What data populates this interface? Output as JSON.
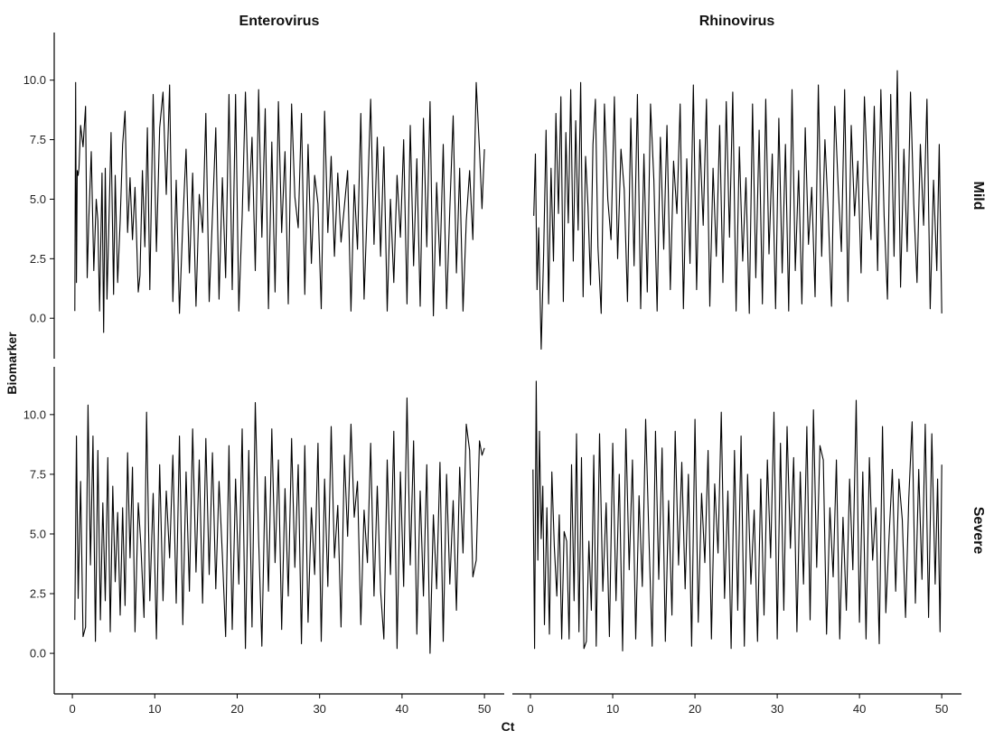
{
  "chart_data": {
    "type": "line",
    "facet_columns": [
      "Enterovirus",
      "Rhinovirus"
    ],
    "facet_rows": [
      "Mild",
      "Severe"
    ],
    "xlabel": "Ct",
    "ylabel": "Biomarker",
    "xlim": [
      -2.2,
      52.4
    ],
    "xticks": [
      0,
      10,
      20,
      30,
      40,
      50
    ],
    "ylim": [
      -1.7,
      12.0
    ],
    "yticks": [
      0.0,
      2.5,
      5.0,
      7.5,
      10.0
    ],
    "ytick_labels": [
      "0.0",
      "2.5",
      "5.0",
      "7.5",
      "10.0"
    ],
    "grid": false,
    "legend": "none",
    "panels": [
      {
        "column": "Enterovirus",
        "row": "Mild",
        "x": [
          0.3,
          0.4,
          0.5,
          0.6,
          0.7,
          0.8,
          1.0,
          1.3,
          1.6,
          1.8,
          2.0,
          2.3,
          2.6,
          2.9,
          3.1,
          3.3,
          3.6,
          3.8,
          4.0,
          4.2,
          4.4,
          4.7,
          5.0,
          5.2,
          5.5,
          5.8,
          6.1,
          6.4,
          6.7,
          7.0,
          7.3,
          7.6,
          8.0,
          8.2,
          8.5,
          8.8,
          9.1,
          9.4,
          9.8,
          10.2,
          10.6,
          11.0,
          11.4,
          11.8,
          12.2,
          12.6,
          13.0,
          13.4,
          13.8,
          14.2,
          14.6,
          15.0,
          15.4,
          15.8,
          16.2,
          16.6,
          17.0,
          17.4,
          17.8,
          18.2,
          18.6,
          19.0,
          19.4,
          19.8,
          20.2,
          20.6,
          21.0,
          21.4,
          21.8,
          22.2,
          22.6,
          23.0,
          23.4,
          23.8,
          24.2,
          24.6,
          25.0,
          25.4,
          25.8,
          26.2,
          26.6,
          27.0,
          27.4,
          27.8,
          28.2,
          28.6,
          29.0,
          29.4,
          29.8,
          30.2,
          30.6,
          31.0,
          31.4,
          31.8,
          32.2,
          32.6,
          33.0,
          33.4,
          33.8,
          34.2,
          34.6,
          35.0,
          35.4,
          35.8,
          36.2,
          36.6,
          37.0,
          37.4,
          37.8,
          38.2,
          38.6,
          39.0,
          39.4,
          39.8,
          40.2,
          40.6,
          41.0,
          41.4,
          41.8,
          42.2,
          42.6,
          43.0,
          43.4,
          43.8,
          44.2,
          44.6,
          45.0,
          45.4,
          45.8,
          46.2,
          46.6,
          47.0,
          47.4,
          47.8,
          48.2,
          48.6,
          49.0,
          49.4,
          49.7,
          50.0
        ],
        "y": [
          0.3,
          9.9,
          1.5,
          6.2,
          6.0,
          6.3,
          8.1,
          7.2,
          8.9,
          1.7,
          4.2,
          7.0,
          2.0,
          5.0,
          4.1,
          0.3,
          6.1,
          -0.6,
          6.3,
          0.8,
          3.5,
          7.8,
          1.0,
          6.0,
          1.5,
          4.1,
          7.3,
          8.7,
          3.6,
          5.9,
          3.3,
          5.5,
          1.1,
          1.8,
          6.2,
          3.0,
          8.0,
          1.2,
          9.4,
          2.8,
          8.0,
          9.5,
          5.2,
          9.8,
          0.7,
          5.8,
          0.2,
          4.0,
          7.1,
          1.9,
          6.1,
          0.5,
          5.2,
          3.6,
          8.6,
          0.7,
          4.3,
          8.0,
          0.8,
          5.9,
          1.7,
          9.4,
          1.2,
          9.4,
          0.3,
          4.3,
          9.5,
          4.5,
          7.6,
          2.0,
          9.6,
          3.4,
          8.8,
          0.4,
          7.4,
          1.1,
          9.1,
          3.6,
          7.0,
          0.6,
          9.0,
          5.1,
          3.8,
          8.6,
          1.0,
          7.3,
          2.3,
          6.0,
          4.8,
          0.4,
          8.7,
          3.6,
          6.8,
          2.6,
          6.1,
          3.2,
          4.7,
          6.2,
          0.3,
          5.6,
          2.9,
          8.6,
          0.8,
          4.9,
          9.2,
          3.1,
          7.6,
          2.6,
          7.2,
          0.3,
          5.0,
          1.5,
          6.0,
          3.4,
          7.5,
          0.6,
          8.1,
          2.2,
          6.7,
          0.5,
          8.4,
          3.0,
          9.1,
          0.1,
          5.7,
          2.2,
          7.3,
          0.4,
          4.6,
          8.5,
          1.9,
          6.3,
          0.3,
          4.1,
          6.2,
          3.3,
          9.9,
          7.1,
          4.6,
          7.1
        ]
      },
      {
        "column": "Rhinovirus",
        "row": "Mild",
        "x": [
          0.4,
          0.6,
          0.8,
          1.0,
          1.3,
          1.6,
          1.9,
          2.2,
          2.5,
          2.8,
          3.1,
          3.4,
          3.7,
          4.0,
          4.3,
          4.6,
          4.9,
          5.2,
          5.5,
          5.8,
          6.1,
          6.4,
          6.7,
          7.0,
          7.3,
          7.6,
          7.9,
          8.2,
          8.6,
          9.0,
          9.4,
          9.8,
          10.2,
          10.6,
          11.0,
          11.4,
          11.8,
          12.2,
          12.6,
          13.0,
          13.4,
          13.8,
          14.2,
          14.6,
          15.0,
          15.4,
          15.8,
          16.2,
          16.6,
          17.0,
          17.4,
          17.8,
          18.2,
          18.6,
          19.0,
          19.4,
          19.8,
          20.2,
          20.6,
          21.0,
          21.4,
          21.8,
          22.2,
          22.6,
          23.0,
          23.4,
          23.8,
          24.2,
          24.6,
          25.0,
          25.4,
          25.8,
          26.2,
          26.6,
          27.0,
          27.4,
          27.8,
          28.2,
          28.6,
          29.0,
          29.4,
          29.8,
          30.2,
          30.6,
          31.0,
          31.4,
          31.8,
          32.2,
          32.6,
          33.0,
          33.4,
          33.8,
          34.2,
          34.6,
          35.0,
          35.4,
          35.8,
          36.2,
          36.6,
          37.0,
          37.4,
          37.8,
          38.2,
          38.6,
          39.0,
          39.4,
          39.8,
          40.2,
          40.6,
          41.0,
          41.4,
          41.8,
          42.2,
          42.6,
          43.0,
          43.4,
          43.8,
          44.2,
          44.6,
          45.0,
          45.4,
          45.8,
          46.2,
          46.6,
          47.0,
          47.4,
          47.8,
          48.2,
          48.6,
          49.0,
          49.4,
          49.7,
          50.0
        ],
        "y": [
          4.3,
          6.9,
          1.2,
          3.8,
          -1.3,
          2.7,
          7.9,
          0.6,
          6.3,
          2.4,
          8.6,
          4.4,
          9.3,
          0.7,
          7.8,
          4.0,
          9.6,
          2.4,
          8.3,
          3.7,
          9.9,
          0.9,
          6.8,
          4.7,
          1.4,
          7.3,
          9.2,
          3.0,
          0.2,
          9.0,
          5.0,
          3.3,
          9.3,
          2.5,
          7.1,
          5.4,
          0.7,
          8.4,
          2.2,
          9.4,
          0.4,
          6.9,
          1.1,
          9.0,
          5.8,
          0.3,
          7.6,
          2.9,
          8.1,
          1.2,
          6.6,
          4.4,
          9.0,
          0.4,
          6.7,
          2.3,
          9.8,
          1.2,
          7.5,
          3.9,
          9.2,
          0.5,
          6.3,
          2.6,
          8.1,
          1.5,
          9.1,
          3.4,
          9.5,
          0.3,
          7.2,
          2.4,
          5.9,
          0.2,
          9.0,
          1.7,
          7.9,
          0.6,
          9.2,
          2.7,
          6.9,
          0.4,
          8.4,
          1.9,
          7.3,
          0.3,
          9.6,
          2.0,
          6.2,
          0.6,
          8.0,
          3.1,
          5.5,
          0.9,
          9.8,
          2.6,
          7.5,
          4.5,
          0.5,
          8.9,
          5.6,
          2.8,
          9.6,
          0.7,
          8.1,
          4.3,
          6.6,
          1.9,
          9.3,
          5.8,
          3.3,
          8.9,
          2.0,
          9.6,
          4.3,
          0.8,
          9.4,
          2.6,
          10.4,
          1.3,
          7.1,
          2.8,
          9.5,
          4.8,
          1.5,
          7.3,
          3.9,
          9.2,
          0.4,
          5.8,
          2.0,
          7.3,
          0.2
        ]
      },
      {
        "column": "Enterovirus",
        "row": "Severe",
        "x": [
          0.3,
          0.5,
          0.7,
          1.0,
          1.3,
          1.6,
          1.9,
          2.2,
          2.5,
          2.8,
          3.1,
          3.4,
          3.7,
          4.0,
          4.3,
          4.6,
          4.9,
          5.2,
          5.5,
          5.8,
          6.1,
          6.4,
          6.7,
          7.0,
          7.3,
          7.6,
          8.0,
          8.3,
          8.7,
          9.0,
          9.4,
          9.8,
          10.2,
          10.6,
          11.0,
          11.4,
          11.8,
          12.2,
          12.6,
          13.0,
          13.4,
          13.8,
          14.2,
          14.6,
          15.0,
          15.4,
          15.8,
          16.2,
          16.6,
          17.0,
          17.4,
          17.8,
          18.2,
          18.6,
          19.0,
          19.4,
          19.8,
          20.2,
          20.6,
          21.0,
          21.4,
          21.8,
          22.2,
          22.6,
          23.0,
          23.4,
          23.8,
          24.2,
          24.6,
          25.0,
          25.4,
          25.8,
          26.2,
          26.6,
          27.0,
          27.4,
          27.8,
          28.2,
          28.6,
          29.0,
          29.4,
          29.8,
          30.2,
          30.6,
          31.0,
          31.4,
          31.8,
          32.2,
          32.6,
          33.0,
          33.4,
          33.8,
          34.2,
          34.6,
          35.0,
          35.4,
          35.8,
          36.2,
          36.6,
          37.0,
          37.4,
          37.8,
          38.2,
          38.6,
          39.0,
          39.4,
          39.8,
          40.2,
          40.6,
          41.0,
          41.4,
          41.8,
          42.2,
          42.6,
          43.0,
          43.4,
          43.8,
          44.2,
          44.6,
          45.0,
          45.4,
          45.8,
          46.2,
          46.6,
          47.0,
          47.4,
          47.8,
          48.2,
          48.6,
          49.0,
          49.4,
          49.7,
          50.0
        ],
        "y": [
          1.4,
          9.1,
          2.3,
          7.2,
          0.7,
          1.1,
          10.4,
          3.7,
          9.1,
          0.5,
          8.5,
          1.4,
          6.3,
          2.2,
          8.2,
          0.9,
          7.0,
          3.0,
          5.9,
          1.6,
          6.1,
          2.0,
          8.4,
          4.0,
          7.8,
          0.9,
          6.3,
          4.6,
          1.5,
          10.1,
          2.2,
          6.7,
          0.6,
          7.9,
          2.2,
          6.8,
          4.0,
          8.3,
          2.1,
          9.1,
          1.2,
          7.6,
          2.6,
          9.4,
          3.4,
          8.1,
          2.1,
          9.0,
          3.3,
          8.4,
          2.7,
          7.2,
          4.1,
          0.7,
          8.7,
          1.0,
          7.3,
          2.9,
          9.4,
          0.2,
          8.5,
          1.1,
          10.5,
          4.8,
          0.3,
          7.4,
          2.6,
          9.4,
          3.8,
          8.1,
          1.0,
          6.9,
          2.4,
          9.0,
          3.6,
          7.9,
          0.4,
          8.7,
          1.3,
          6.1,
          3.3,
          8.8,
          0.5,
          7.3,
          2.8,
          9.5,
          4.0,
          6.2,
          1.1,
          8.3,
          4.9,
          9.6,
          5.7,
          7.2,
          1.2,
          6.0,
          3.8,
          8.8,
          2.4,
          7.0,
          2.6,
          0.6,
          8.1,
          3.3,
          9.3,
          0.2,
          7.6,
          2.8,
          10.7,
          3.7,
          8.9,
          0.8,
          6.8,
          2.4,
          7.9,
          0.0,
          5.8,
          2.7,
          8.0,
          0.5,
          7.5,
          2.9,
          6.4,
          1.8,
          7.8,
          4.2,
          9.6,
          8.5,
          3.2,
          3.9,
          8.9,
          8.3,
          8.6
        ]
      },
      {
        "column": "Rhinovirus",
        "row": "Severe",
        "x": [
          0.3,
          0.5,
          0.7,
          0.9,
          1.1,
          1.3,
          1.5,
          1.7,
          2.0,
          2.3,
          2.6,
          2.9,
          3.2,
          3.5,
          3.8,
          4.1,
          4.4,
          4.7,
          5.0,
          5.3,
          5.6,
          5.9,
          6.2,
          6.5,
          6.8,
          7.1,
          7.4,
          7.7,
          8.0,
          8.4,
          8.8,
          9.2,
          9.6,
          10.0,
          10.4,
          10.8,
          11.2,
          11.6,
          12.0,
          12.4,
          12.8,
          13.2,
          13.6,
          14.0,
          14.4,
          14.8,
          15.2,
          15.6,
          16.0,
          16.4,
          16.8,
          17.2,
          17.6,
          18.0,
          18.4,
          18.8,
          19.2,
          19.6,
          20.0,
          20.4,
          20.8,
          21.2,
          21.6,
          22.0,
          22.4,
          22.8,
          23.2,
          23.6,
          24.0,
          24.4,
          24.8,
          25.2,
          25.6,
          26.0,
          26.4,
          26.8,
          27.2,
          27.6,
          28.0,
          28.4,
          28.8,
          29.2,
          29.6,
          30.0,
          30.4,
          30.8,
          31.2,
          31.6,
          32.0,
          32.4,
          32.8,
          33.2,
          33.6,
          34.0,
          34.4,
          34.8,
          35.2,
          35.6,
          36.0,
          36.4,
          36.8,
          37.2,
          37.6,
          38.0,
          38.4,
          38.8,
          39.2,
          39.6,
          40.0,
          40.4,
          40.8,
          41.2,
          41.6,
          42.0,
          42.4,
          42.8,
          43.2,
          43.6,
          44.0,
          44.4,
          44.8,
          45.2,
          45.6,
          46.0,
          46.4,
          46.8,
          47.2,
          47.6,
          48.0,
          48.4,
          48.8,
          49.2,
          49.5,
          49.8,
          50.0
        ],
        "y": [
          7.7,
          0.2,
          11.4,
          3.9,
          9.3,
          4.8,
          7.0,
          1.2,
          6.1,
          0.8,
          7.6,
          4.5,
          2.4,
          5.8,
          0.6,
          5.1,
          4.7,
          0.6,
          7.9,
          2.2,
          9.2,
          0.9,
          8.2,
          0.2,
          0.5,
          4.7,
          1.8,
          8.3,
          0.3,
          9.2,
          2.6,
          6.3,
          0.7,
          8.8,
          2.2,
          7.5,
          0.1,
          9.4,
          3.5,
          8.1,
          0.6,
          6.6,
          2.8,
          9.8,
          4.9,
          0.3,
          9.3,
          3.1,
          8.6,
          0.5,
          6.4,
          1.6,
          9.3,
          3.7,
          8.0,
          2.7,
          7.5,
          0.3,
          9.8,
          1.3,
          6.7,
          3.8,
          8.5,
          0.6,
          7.1,
          4.2,
          10.1,
          2.3,
          6.8,
          0.2,
          8.5,
          1.8,
          9.1,
          0.3,
          7.5,
          2.9,
          6.0,
          0.5,
          7.3,
          1.6,
          8.1,
          4.0,
          10.1,
          0.6,
          8.8,
          1.8,
          9.5,
          4.4,
          8.2,
          0.9,
          7.6,
          2.9,
          9.5,
          1.4,
          10.2,
          3.6,
          8.7,
          8.1,
          0.8,
          6.1,
          3.2,
          8.1,
          0.6,
          5.7,
          1.8,
          7.3,
          3.5,
          10.6,
          1.3,
          7.6,
          0.6,
          8.2,
          3.9,
          6.1,
          0.4,
          9.5,
          1.7,
          4.9,
          7.7,
          2.6,
          7.3,
          5.6,
          1.5,
          6.5,
          9.7,
          2.1,
          7.7,
          3.1,
          9.6,
          1.5,
          9.2,
          2.9,
          7.3,
          0.9,
          7.9
        ]
      }
    ]
  }
}
